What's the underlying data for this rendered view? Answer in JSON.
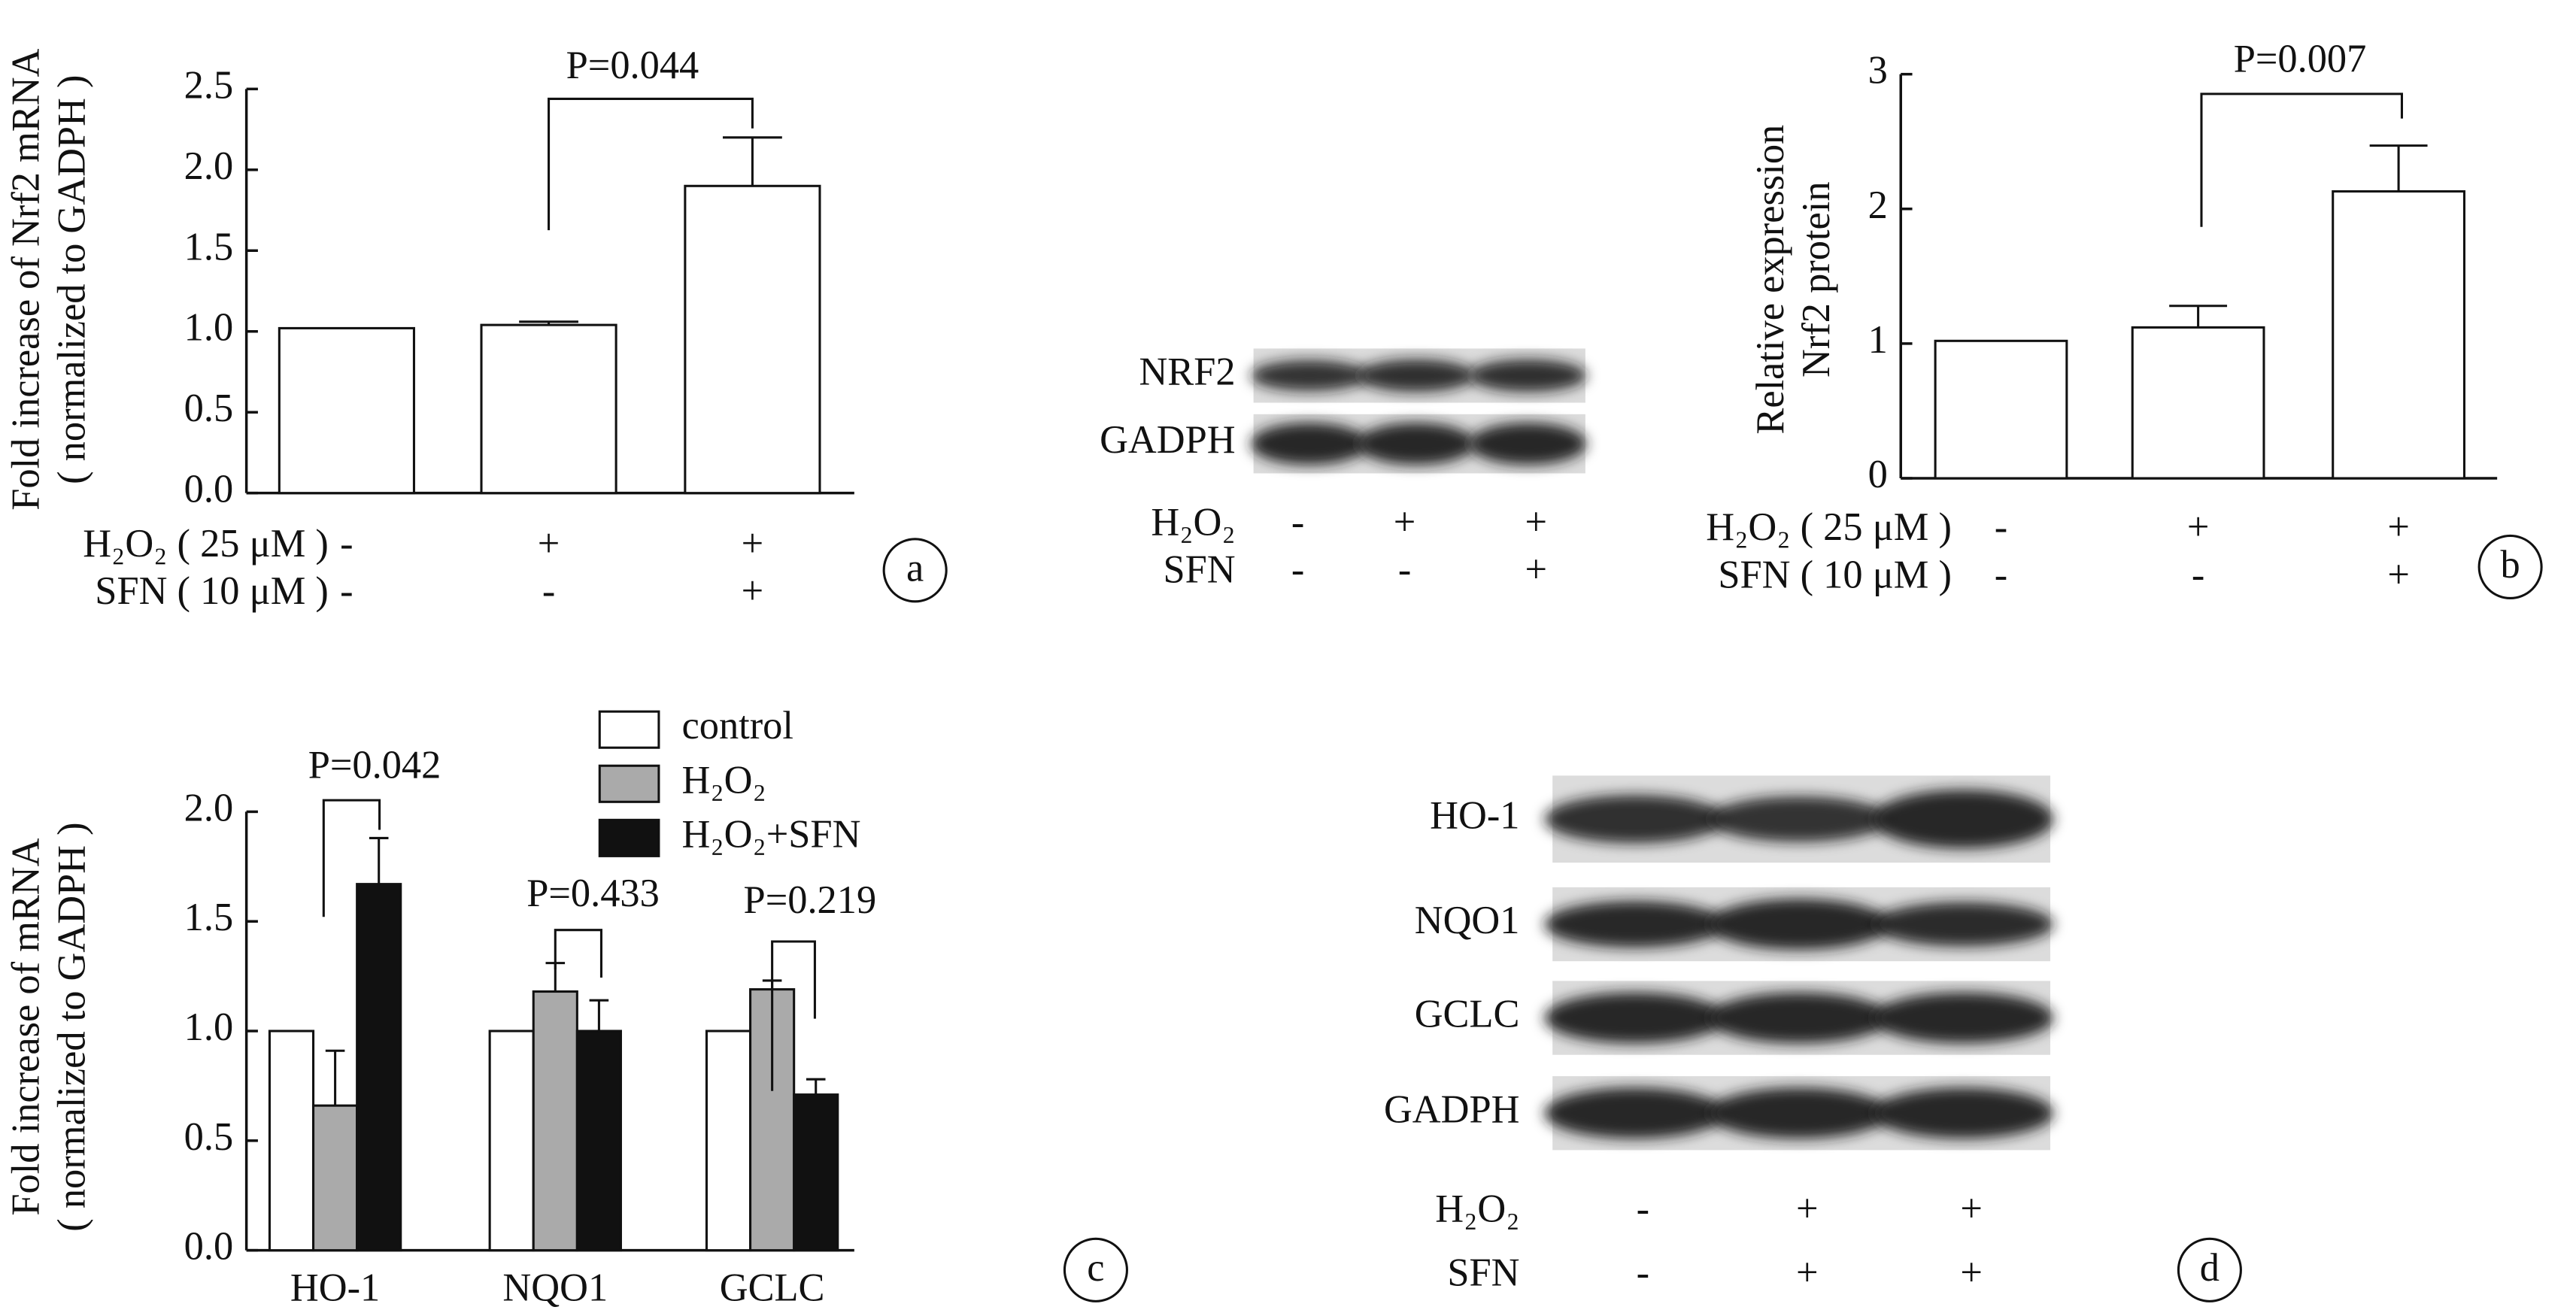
{
  "chart_data": [
    {
      "type": "bar",
      "panel": "a",
      "y_label": [
        "Fold increase of Nrf2 mRNA",
        "( normalized to GADPH )"
      ],
      "ylim": [
        0,
        2.5
      ],
      "yticks": [
        {
          "value": 0,
          "label": "0.0"
        },
        0.5,
        {
          "value": 1,
          "label": "1.0"
        },
        1.5,
        {
          "value": 2,
          "label": "2.0"
        },
        2.5
      ],
      "values": [
        1.02,
        1.04,
        1.9
      ],
      "errors": [
        null,
        0.02,
        0.3
      ],
      "color": "#ffffff",
      "annotations": [
        "P=0.044"
      ],
      "treatments": [
        {
          "name": "H₂O₂ ( 25 μM )",
          "marks": [
            "-",
            "+",
            "+"
          ]
        },
        {
          "name": "SFN ( 10 μM )",
          "marks": [
            "-",
            "-",
            "+"
          ]
        }
      ]
    },
    {
      "type": "bar",
      "panel": "b",
      "y_label": [
        "Relative expression",
        "Nrf2 protein"
      ],
      "ylim": [
        0,
        3
      ],
      "yticks": [
        0,
        1,
        2,
        3
      ],
      "values": [
        1.02,
        1.12,
        2.13
      ],
      "errors": [
        null,
        0.16,
        0.34
      ],
      "color": "#ffffff",
      "annotations": [
        "P=0.007"
      ],
      "treatments": [
        {
          "name": "H₂O₂ ( 25 μM )",
          "marks": [
            "-",
            "+",
            "+"
          ]
        },
        {
          "name": "SFN ( 10 μM )",
          "marks": [
            "-",
            "-",
            "+"
          ]
        }
      ]
    },
    {
      "type": "grouped_bar",
      "panel": "c",
      "y_label": [
        "Fold increase of mRNA",
        "( normalized to GADPH )"
      ],
      "ylim": [
        0,
        2
      ],
      "yticks": [
        {
          "value": 0,
          "label": "0.0"
        },
        0.5,
        {
          "value": 1,
          "label": "1.0"
        },
        1.5,
        {
          "value": 2,
          "label": "2.0"
        }
      ],
      "categories": [
        "HO-1",
        "NQO1",
        "GCLC"
      ],
      "series": [
        {
          "name": "control",
          "color": "#ffffff",
          "values": [
            1.0,
            1.0,
            1.0
          ],
          "errors": [
            null,
            null,
            null
          ]
        },
        {
          "name": "H₂O₂",
          "color": "#aaaaaa",
          "values": [
            0.66,
            1.18,
            1.19
          ],
          "errors": [
            0.25,
            0.13,
            0.04
          ]
        },
        {
          "name": "H₂O₂+SFN",
          "color": "#111111",
          "values": [
            1.67,
            1.0,
            0.71
          ],
          "errors": [
            0.21,
            0.14,
            0.07
          ]
        }
      ],
      "annotations": [
        "P=0.042",
        "P=0.433",
        "P=0.219"
      ]
    }
  ],
  "blots": [
    {
      "panel": "b",
      "rows": [
        "NRF2",
        "GADPH"
      ],
      "treatments": [
        {
          "name": "H₂O₂",
          "marks": [
            "-",
            "+",
            "+"
          ]
        },
        {
          "name": "SFN",
          "marks": [
            "-",
            "-",
            "+"
          ]
        }
      ]
    },
    {
      "panel": "d",
      "rows": [
        "HO-1",
        "NQO1",
        "GCLC",
        "GADPH"
      ],
      "treatments": [
        {
          "name": "H₂O₂",
          "marks": [
            "-",
            "+",
            "+"
          ]
        },
        {
          "name": "SFN",
          "marks": [
            "-",
            "+",
            "+"
          ]
        }
      ]
    }
  ]
}
